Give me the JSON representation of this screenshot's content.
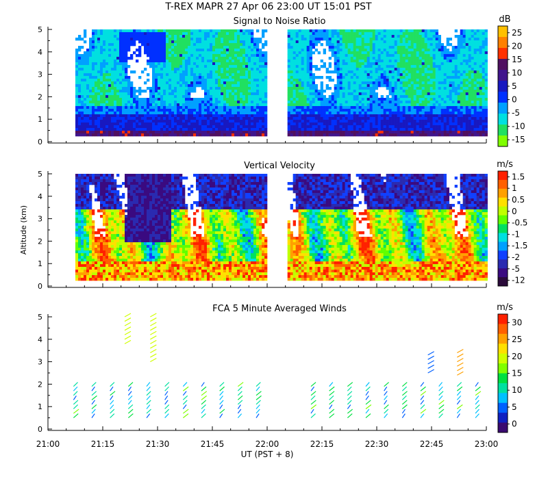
{
  "header": {
    "title": "T-REX  MAPR 27 Apr 06  23:00 UT  15:01  PST"
  },
  "colors": {
    "scale13": [
      "#7fff00",
      "#00e060",
      "#00e0c0",
      "#00a0ff",
      "#0040ff",
      "#1010c0",
      "#3a1a9a",
      "#4a1380",
      "#3a0a60",
      "#ff5000",
      "#ff8c00",
      "#ffd000",
      "#ffd000"
    ],
    "snr": [
      "#80ff00",
      "#20e060",
      "#00e0e0",
      "#00a0ff",
      "#0030ff",
      "#1818c0",
      "#40148c",
      "#501060",
      "#ff3000",
      "#ff8000",
      "#ffc000"
    ],
    "vv": [
      "#2a0a3a",
      "#3a0a80",
      "#2a2ab0",
      "#1040ff",
      "#00a0ff",
      "#00e0e0",
      "#00e060",
      "#60ff00",
      "#c0ff00",
      "#ffe000",
      "#ffa000",
      "#ff6000",
      "#ff2000"
    ],
    "wind": [
      "#3a0a70",
      "#1020c0",
      "#0060ff",
      "#00c0ff",
      "#00e0a0",
      "#00e040",
      "#80ff00",
      "#d0ff00",
      "#ffe000",
      "#ffa000",
      "#ff6000",
      "#ff2000"
    ]
  },
  "chart_data": [
    {
      "type": "heatmap",
      "title": "Signal to Noise Ratio",
      "ylabel": "",
      "ylim": [
        0,
        5
      ],
      "yticks": [
        "0",
        "1",
        "2",
        "3",
        "4",
        "5"
      ],
      "colorbar": {
        "unit": "dB",
        "labels": [
          "25",
          "20",
          "15",
          "10",
          "5",
          "0",
          "-5",
          "-10",
          "-15"
        ]
      }
    },
    {
      "type": "heatmap",
      "title": "Vertical Velocity",
      "ylabel": "Altitude (km)",
      "ylim": [
        0,
        5
      ],
      "yticks": [
        "0",
        "1",
        "2",
        "3",
        "4",
        "5"
      ],
      "colorbar": {
        "unit": "m/s",
        "labels": [
          "1.5",
          "1",
          "0.5",
          "0",
          "-0.5",
          "-1",
          "-1.5",
          "-2",
          "-5",
          "-12"
        ]
      }
    },
    {
      "type": "scatter",
      "title": "FCA 5 Minute Averaged Winds",
      "ylabel": "",
      "ylim": [
        0,
        5
      ],
      "yticks": [
        "0",
        "1",
        "2",
        "3",
        "4",
        "5"
      ],
      "colorbar": {
        "unit": "m/s",
        "labels": [
          "30",
          "25",
          "20",
          "15",
          "10",
          "5",
          "0"
        ]
      }
    }
  ],
  "xaxis": {
    "label": "UT  (PST + 8)",
    "ticks": [
      "21:00",
      "21:15",
      "21:30",
      "21:45",
      "22:00",
      "22:15",
      "22:30",
      "22:45",
      "23:00"
    ],
    "range_minutes": [
      0,
      120
    ],
    "gap_minutes": [
      60,
      65
    ]
  }
}
